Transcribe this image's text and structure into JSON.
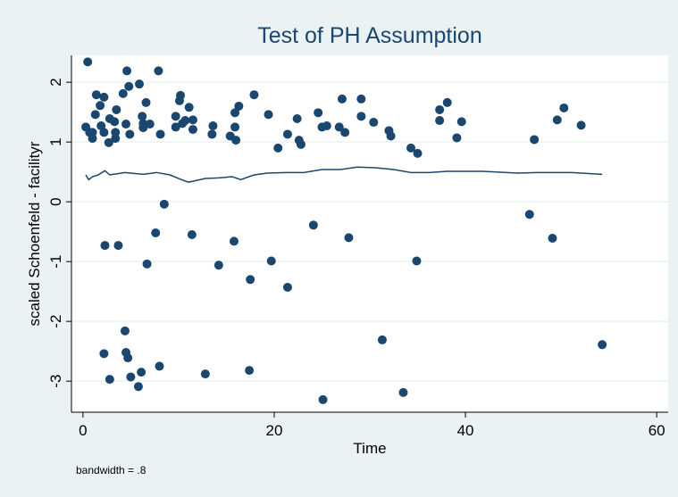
{
  "chart_data": {
    "type": "scatter",
    "title": "Test of PH Assumption",
    "xlabel": "Time",
    "ylabel": "scaled Schoenfeld - facilityr",
    "note": "bandwidth = .8",
    "xlim": [
      -1.2,
      61.2
    ],
    "ylim": [
      -3.52,
      2.45
    ],
    "xticks": [
      0,
      20,
      40,
      60
    ],
    "yticks": [
      -3,
      -2,
      -1,
      0,
      1,
      2
    ],
    "grid": true,
    "series": [
      {
        "type": "scatter",
        "color": "#1a476f",
        "x": [
          0.5,
          0.3,
          0.7,
          1.0,
          1.0,
          1.3,
          1.4,
          1.8,
          1.9,
          2.2,
          2.2,
          2.7,
          2.8,
          3.3,
          3.4,
          3.4,
          3.5,
          4.2,
          4.6,
          4.5,
          4.8,
          4.9,
          5.9,
          6.2,
          6.6,
          6.3,
          6.3,
          7.0,
          7.9,
          8.1,
          9.7,
          9.7,
          10.1,
          10.2,
          10.4,
          10.7,
          11.1,
          11.5,
          11.5,
          13.6,
          13.5,
          15.4,
          15.9,
          15.9,
          16.0,
          16.3,
          17.9,
          19.4,
          20.4,
          21.4,
          22.4,
          22.6,
          22.8,
          24.6,
          25.0,
          25.5,
          26.8,
          27.1,
          27.4,
          29.1,
          29.1,
          30.4,
          32.0,
          32.2,
          34.3,
          35.0,
          37.3,
          37.3,
          38.1,
          39.1,
          39.6,
          47.2,
          49.6,
          50.3,
          52.1,
          8.5,
          7.6,
          2.3,
          3.7,
          11.4,
          15.8,
          6.7,
          14.2,
          19.7,
          17.5,
          21.4,
          24.1,
          27.8,
          34.9,
          46.7,
          49.1,
          4.4,
          2.2,
          4.5,
          4.7,
          2.8,
          5.0,
          6.1,
          5.8,
          8.0,
          12.8,
          17.4,
          25.1,
          31.3,
          33.5,
          54.3
        ],
        "values": [
          2.34,
          1.25,
          1.16,
          1.06,
          1.16,
          1.46,
          1.79,
          1.61,
          1.27,
          1.75,
          1.16,
          0.99,
          1.39,
          1.34,
          1.16,
          1.06,
          1.54,
          1.81,
          2.19,
          1.3,
          1.93,
          1.13,
          1.97,
          1.43,
          1.66,
          1.24,
          1.31,
          1.3,
          2.19,
          1.13,
          1.25,
          1.43,
          1.69,
          1.78,
          1.31,
          1.36,
          1.58,
          1.37,
          1.21,
          1.27,
          1.13,
          1.1,
          1.49,
          1.25,
          1.03,
          1.6,
          1.79,
          1.46,
          0.9,
          1.13,
          1.39,
          1.03,
          0.96,
          1.49,
          1.25,
          1.27,
          1.25,
          1.72,
          1.16,
          1.72,
          1.43,
          1.33,
          1.19,
          1.1,
          0.9,
          0.81,
          1.54,
          1.36,
          1.66,
          1.07,
          1.34,
          1.04,
          1.37,
          1.57,
          1.28,
          -0.04,
          -0.52,
          -0.73,
          -0.73,
          -0.55,
          -0.66,
          -1.04,
          -1.06,
          -0.99,
          -1.3,
          -1.43,
          -0.39,
          -0.6,
          -0.99,
          -0.21,
          -0.61,
          -2.16,
          -2.54,
          -2.52,
          -2.61,
          -2.97,
          -2.93,
          -2.85,
          -3.09,
          -2.75,
          -2.88,
          -2.82,
          -3.31,
          -2.31,
          -3.19,
          -2.39
        ]
      },
      {
        "type": "line",
        "color": "#1a476f",
        "x": [
          0.3,
          0.6,
          1.0,
          1.6,
          2.3,
          2.8,
          4.4,
          6.3,
          7.7,
          9.1,
          10.0,
          11.0,
          11.4,
          12.8,
          14.2,
          15.6,
          16.5,
          17.9,
          19.3,
          21.2,
          23.1,
          25.0,
          26.9,
          28.7,
          30.6,
          32.5,
          34.3,
          36.2,
          38.1,
          41.8,
          45.5,
          47.4,
          51.1,
          54.3
        ],
        "values": [
          0.45,
          0.37,
          0.42,
          0.45,
          0.52,
          0.45,
          0.49,
          0.46,
          0.49,
          0.45,
          0.39,
          0.33,
          0.34,
          0.39,
          0.4,
          0.42,
          0.37,
          0.45,
          0.48,
          0.49,
          0.49,
          0.54,
          0.54,
          0.58,
          0.57,
          0.54,
          0.49,
          0.49,
          0.51,
          0.51,
          0.48,
          0.49,
          0.49,
          0.46
        ]
      }
    ]
  }
}
